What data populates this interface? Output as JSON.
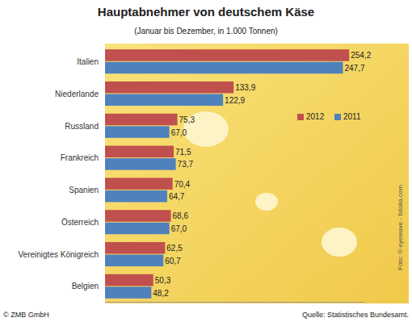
{
  "chart_data": {
    "type": "bar",
    "orientation": "horizontal",
    "title": "Hauptabnehmer von deutschem Käse",
    "subtitle": "(Januar bis Dezember, in 1.000 Tonnen)",
    "categories": [
      "Italien",
      "Niederlande",
      "Russland",
      "Frankreich",
      "Spanien",
      "Österreich",
      "Vereinigtes Königreich",
      "Belgien"
    ],
    "series": [
      {
        "name": "2012",
        "color": "#c0504d",
        "values": [
          254.2,
          133.9,
          75.3,
          71.5,
          70.4,
          68.6,
          62.5,
          50.3
        ],
        "value_labels": [
          "254,2",
          "133,9",
          "75,3",
          "71,5",
          "70,4",
          "68,6",
          "62,5",
          "50,3"
        ]
      },
      {
        "name": "2011",
        "color": "#4f81bd",
        "values": [
          247.7,
          122.9,
          67.0,
          73.7,
          64.7,
          67.0,
          60.7,
          48.2
        ],
        "value_labels": [
          "247,7",
          "122,9",
          "67,0",
          "73,7",
          "64,7",
          "67,0",
          "60,7",
          "48,2"
        ]
      }
    ],
    "xlim": [
      0,
      270
    ],
    "tick_labels": "y",
    "data_labels": true,
    "legend": "right",
    "grid": false,
    "annotations": [
      "© ZMB GmbH",
      "Quelle: Statistisches Bundesamt.",
      "Foto: © eyewave - fotolia.com"
    ]
  }
}
